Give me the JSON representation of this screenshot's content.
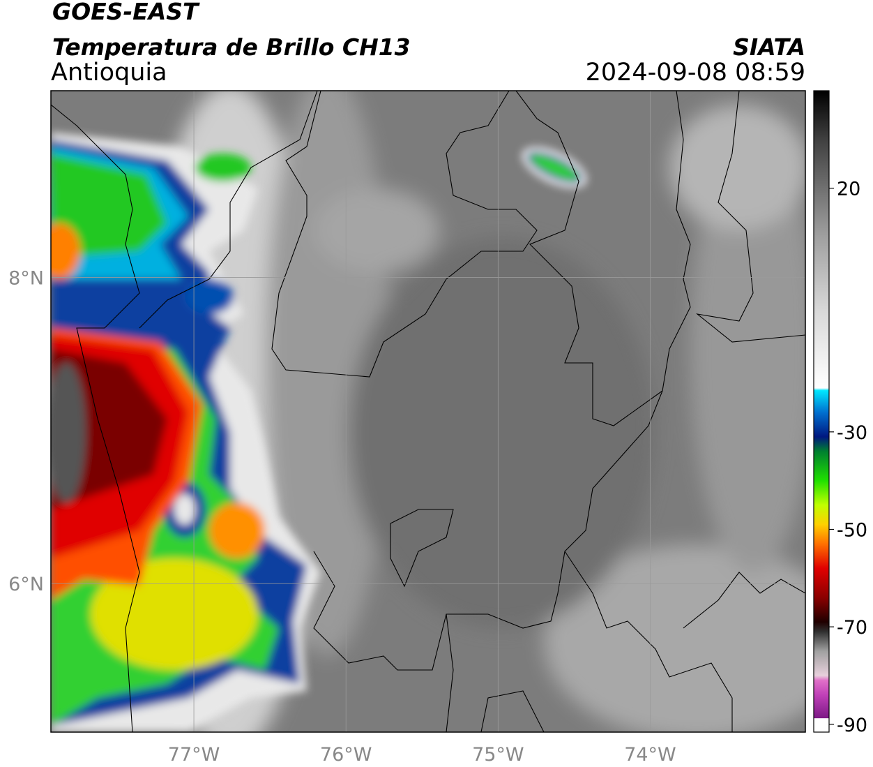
{
  "header": {
    "title": "GOES-EAST",
    "subtitle": "Temperatura de Brillo CH13",
    "region": "Antioquia",
    "source": "SIATA",
    "timestamp": "2024-09-08 08:59"
  },
  "map": {
    "xlim": [
      -77.94,
      -72.98
    ],
    "ylim": [
      5.03,
      9.22
    ],
    "xticks": [
      {
        "value": -77,
        "label": "77°W"
      },
      {
        "value": -76,
        "label": "76°W"
      },
      {
        "value": -75,
        "label": "75°W"
      },
      {
        "value": -74,
        "label": "74°W"
      }
    ],
    "yticks": [
      {
        "value": 6,
        "label": "6°N"
      },
      {
        "value": 8,
        "label": "8°N"
      }
    ],
    "grid": true
  },
  "colorbar": {
    "lim": [
      -91.6,
      40
    ],
    "ticks": [
      20,
      -30,
      -50,
      -70,
      -90
    ],
    "stops": [
      {
        "value": -88.8,
        "color": "#ffffff"
      },
      {
        "value": -88.7,
        "color": "#7d1a86"
      },
      {
        "value": -84,
        "color": "#c040b8"
      },
      {
        "value": -81,
        "color": "#e070c8"
      },
      {
        "value": -80,
        "color": "#e8d0dc"
      },
      {
        "value": -75,
        "color": "#a0a0a0"
      },
      {
        "value": -71,
        "color": "#303030"
      },
      {
        "value": -69,
        "color": "#200000"
      },
      {
        "value": -64,
        "color": "#8b0000"
      },
      {
        "value": -58,
        "color": "#e00000"
      },
      {
        "value": -53,
        "color": "#ff7000"
      },
      {
        "value": -49,
        "color": "#ffd000"
      },
      {
        "value": -45,
        "color": "#c0ff00"
      },
      {
        "value": -40,
        "color": "#20e000"
      },
      {
        "value": -34,
        "color": "#008030"
      },
      {
        "value": -31,
        "color": "#001880"
      },
      {
        "value": -26,
        "color": "#0070d0"
      },
      {
        "value": -21.5,
        "color": "#00e8ff"
      },
      {
        "value": -21,
        "color": "#ffffff"
      },
      {
        "value": -5,
        "color": "#d8d8d8"
      },
      {
        "value": 10,
        "color": "#a0a0a0"
      },
      {
        "value": 20,
        "color": "#707070"
      },
      {
        "value": 30,
        "color": "#404040"
      },
      {
        "value": 40,
        "color": "#000000"
      }
    ]
  }
}
